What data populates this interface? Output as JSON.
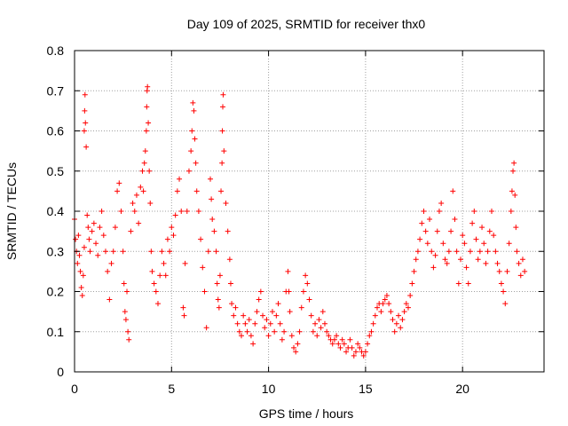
{
  "chart_data": {
    "type": "scatter",
    "title": "Day 109 of 2025, SRMTID for receiver thx0",
    "xlabel": "GPS time / hours",
    "ylabel": "SRMTID / TECUs",
    "xlim": [
      0,
      24.2
    ],
    "ylim": [
      0,
      0.8
    ],
    "x_ticks": [
      0,
      5,
      10,
      15,
      20
    ],
    "x_tick_labels": [
      "0",
      "5",
      "10",
      "15",
      "20"
    ],
    "y_ticks": [
      0,
      0.1,
      0.2,
      0.3,
      0.4,
      0.5,
      0.6,
      0.7,
      0.8
    ],
    "y_tick_labels": [
      "0",
      "0.1",
      "0.2",
      "0.3",
      "0.4",
      "0.5",
      "0.6",
      "0.7",
      "0.8"
    ],
    "grid": true,
    "marker": "+",
    "point_color": "#ff0000",
    "series": [
      {
        "name": "thx0",
        "points": [
          [
            0.0,
            0.38
          ],
          [
            0.05,
            0.33
          ],
          [
            0.1,
            0.3
          ],
          [
            0.15,
            0.27
          ],
          [
            0.2,
            0.34
          ],
          [
            0.25,
            0.29
          ],
          [
            0.3,
            0.25
          ],
          [
            0.35,
            0.21
          ],
          [
            0.4,
            0.19
          ],
          [
            0.45,
            0.24
          ],
          [
            0.5,
            0.31
          ],
          [
            0.5,
            0.6
          ],
          [
            0.52,
            0.65
          ],
          [
            0.54,
            0.69
          ],
          [
            0.56,
            0.62
          ],
          [
            0.6,
            0.56
          ],
          [
            0.65,
            0.39
          ],
          [
            0.7,
            0.36
          ],
          [
            0.75,
            0.33
          ],
          [
            0.8,
            0.3
          ],
          [
            0.9,
            0.35
          ],
          [
            1.0,
            0.37
          ],
          [
            1.1,
            0.32
          ],
          [
            1.2,
            0.29
          ],
          [
            1.3,
            0.36
          ],
          [
            1.4,
            0.4
          ],
          [
            1.5,
            0.34
          ],
          [
            1.6,
            0.3
          ],
          [
            1.7,
            0.25
          ],
          [
            1.8,
            0.18
          ],
          [
            1.9,
            0.27
          ],
          [
            2.0,
            0.3
          ],
          [
            2.1,
            0.36
          ],
          [
            2.2,
            0.45
          ],
          [
            2.3,
            0.47
          ],
          [
            2.4,
            0.4
          ],
          [
            2.5,
            0.3
          ],
          [
            2.55,
            0.22
          ],
          [
            2.6,
            0.15
          ],
          [
            2.65,
            0.13
          ],
          [
            2.7,
            0.2
          ],
          [
            2.75,
            0.1
          ],
          [
            2.8,
            0.08
          ],
          [
            2.9,
            0.35
          ],
          [
            3.0,
            0.42
          ],
          [
            3.1,
            0.4
          ],
          [
            3.2,
            0.44
          ],
          [
            3.3,
            0.37
          ],
          [
            3.4,
            0.46
          ],
          [
            3.5,
            0.5
          ],
          [
            3.55,
            0.45
          ],
          [
            3.6,
            0.52
          ],
          [
            3.65,
            0.55
          ],
          [
            3.7,
            0.6
          ],
          [
            3.72,
            0.66
          ],
          [
            3.74,
            0.7
          ],
          [
            3.76,
            0.71
          ],
          [
            3.8,
            0.62
          ],
          [
            3.85,
            0.5
          ],
          [
            3.9,
            0.42
          ],
          [
            3.95,
            0.3
          ],
          [
            4.0,
            0.25
          ],
          [
            4.1,
            0.22
          ],
          [
            4.2,
            0.2
          ],
          [
            4.3,
            0.17
          ],
          [
            4.4,
            0.24
          ],
          [
            4.5,
            0.3
          ],
          [
            4.6,
            0.27
          ],
          [
            4.7,
            0.24
          ],
          [
            4.8,
            0.33
          ],
          [
            4.9,
            0.3
          ],
          [
            5.0,
            0.36
          ],
          [
            5.1,
            0.34
          ],
          [
            5.2,
            0.39
          ],
          [
            5.3,
            0.45
          ],
          [
            5.4,
            0.48
          ],
          [
            5.5,
            0.4
          ],
          [
            5.6,
            0.16
          ],
          [
            5.65,
            0.14
          ],
          [
            5.7,
            0.27
          ],
          [
            5.8,
            0.4
          ],
          [
            5.9,
            0.5
          ],
          [
            6.0,
            0.55
          ],
          [
            6.05,
            0.6
          ],
          [
            6.1,
            0.67
          ],
          [
            6.15,
            0.65
          ],
          [
            6.2,
            0.58
          ],
          [
            6.25,
            0.52
          ],
          [
            6.3,
            0.45
          ],
          [
            6.4,
            0.4
          ],
          [
            6.5,
            0.33
          ],
          [
            6.6,
            0.26
          ],
          [
            6.7,
            0.2
          ],
          [
            6.8,
            0.11
          ],
          [
            6.9,
            0.3
          ],
          [
            7.0,
            0.48
          ],
          [
            7.05,
            0.43
          ],
          [
            7.1,
            0.38
          ],
          [
            7.2,
            0.35
          ],
          [
            7.3,
            0.3
          ],
          [
            7.35,
            0.22
          ],
          [
            7.4,
            0.18
          ],
          [
            7.45,
            0.16
          ],
          [
            7.5,
            0.24
          ],
          [
            7.55,
            0.45
          ],
          [
            7.6,
            0.52
          ],
          [
            7.62,
            0.6
          ],
          [
            7.64,
            0.66
          ],
          [
            7.66,
            0.69
          ],
          [
            7.7,
            0.55
          ],
          [
            7.8,
            0.42
          ],
          [
            7.9,
            0.35
          ],
          [
            8.0,
            0.28
          ],
          [
            8.05,
            0.22
          ],
          [
            8.1,
            0.17
          ],
          [
            8.2,
            0.14
          ],
          [
            8.3,
            0.16
          ],
          [
            8.4,
            0.12
          ],
          [
            8.5,
            0.1
          ],
          [
            8.6,
            0.09
          ],
          [
            8.7,
            0.14
          ],
          [
            8.8,
            0.12
          ],
          [
            8.9,
            0.1
          ],
          [
            9.0,
            0.13
          ],
          [
            9.1,
            0.09
          ],
          [
            9.2,
            0.07
          ],
          [
            9.3,
            0.12
          ],
          [
            9.4,
            0.15
          ],
          [
            9.5,
            0.18
          ],
          [
            9.6,
            0.2
          ],
          [
            9.7,
            0.14
          ],
          [
            9.8,
            0.11
          ],
          [
            9.9,
            0.13
          ],
          [
            10.0,
            0.09
          ],
          [
            10.1,
            0.12
          ],
          [
            10.2,
            0.15
          ],
          [
            10.3,
            0.1
          ],
          [
            10.4,
            0.14
          ],
          [
            10.5,
            0.17
          ],
          [
            10.6,
            0.12
          ],
          [
            10.7,
            0.08
          ],
          [
            10.8,
            0.1
          ],
          [
            10.9,
            0.2
          ],
          [
            11.0,
            0.25
          ],
          [
            11.05,
            0.2
          ],
          [
            11.1,
            0.15
          ],
          [
            11.2,
            0.09
          ],
          [
            11.3,
            0.06
          ],
          [
            11.4,
            0.05
          ],
          [
            11.5,
            0.07
          ],
          [
            11.6,
            0.1
          ],
          [
            11.7,
            0.16
          ],
          [
            11.8,
            0.2
          ],
          [
            11.9,
            0.24
          ],
          [
            12.0,
            0.22
          ],
          [
            12.1,
            0.18
          ],
          [
            12.2,
            0.14
          ],
          [
            12.3,
            0.1
          ],
          [
            12.4,
            0.12
          ],
          [
            12.5,
            0.09
          ],
          [
            12.6,
            0.13
          ],
          [
            12.7,
            0.11
          ],
          [
            12.8,
            0.15
          ],
          [
            12.9,
            0.12
          ],
          [
            13.0,
            0.1
          ],
          [
            13.1,
            0.09
          ],
          [
            13.2,
            0.08
          ],
          [
            13.3,
            0.07
          ],
          [
            13.4,
            0.08
          ],
          [
            13.5,
            0.09
          ],
          [
            13.6,
            0.07
          ],
          [
            13.7,
            0.06
          ],
          [
            13.8,
            0.08
          ],
          [
            13.9,
            0.07
          ],
          [
            14.0,
            0.05
          ],
          [
            14.1,
            0.06
          ],
          [
            14.2,
            0.08
          ],
          [
            14.3,
            0.06
          ],
          [
            14.4,
            0.04
          ],
          [
            14.5,
            0.05
          ],
          [
            14.6,
            0.07
          ],
          [
            14.7,
            0.06
          ],
          [
            14.8,
            0.05
          ],
          [
            14.9,
            0.04
          ],
          [
            15.0,
            0.05
          ],
          [
            15.1,
            0.07
          ],
          [
            15.2,
            0.09
          ],
          [
            15.3,
            0.1
          ],
          [
            15.4,
            0.12
          ],
          [
            15.5,
            0.14
          ],
          [
            15.6,
            0.16
          ],
          [
            15.7,
            0.17
          ],
          [
            15.8,
            0.15
          ],
          [
            15.9,
            0.17
          ],
          [
            16.0,
            0.18
          ],
          [
            16.1,
            0.19
          ],
          [
            16.2,
            0.17
          ],
          [
            16.3,
            0.15
          ],
          [
            16.4,
            0.13
          ],
          [
            16.5,
            0.1
          ],
          [
            16.6,
            0.12
          ],
          [
            16.7,
            0.14
          ],
          [
            16.8,
            0.11
          ],
          [
            16.9,
            0.13
          ],
          [
            17.0,
            0.15
          ],
          [
            17.1,
            0.17
          ],
          [
            17.2,
            0.16
          ],
          [
            17.3,
            0.19
          ],
          [
            17.4,
            0.22
          ],
          [
            17.5,
            0.25
          ],
          [
            17.6,
            0.28
          ],
          [
            17.7,
            0.3
          ],
          [
            17.8,
            0.33
          ],
          [
            17.9,
            0.37
          ],
          [
            18.0,
            0.4
          ],
          [
            18.1,
            0.35
          ],
          [
            18.2,
            0.32
          ],
          [
            18.3,
            0.38
          ],
          [
            18.4,
            0.3
          ],
          [
            18.5,
            0.26
          ],
          [
            18.6,
            0.29
          ],
          [
            18.7,
            0.35
          ],
          [
            18.8,
            0.4
          ],
          [
            18.9,
            0.42
          ],
          [
            19.0,
            0.32
          ],
          [
            19.1,
            0.28
          ],
          [
            19.2,
            0.27
          ],
          [
            19.3,
            0.3
          ],
          [
            19.4,
            0.35
          ],
          [
            19.5,
            0.45
          ],
          [
            19.6,
            0.38
          ],
          [
            19.7,
            0.3
          ],
          [
            19.8,
            0.22
          ],
          [
            19.9,
            0.28
          ],
          [
            20.0,
            0.34
          ],
          [
            20.1,
            0.32
          ],
          [
            20.2,
            0.26
          ],
          [
            20.3,
            0.22
          ],
          [
            20.4,
            0.3
          ],
          [
            20.5,
            0.37
          ],
          [
            20.6,
            0.4
          ],
          [
            20.7,
            0.33
          ],
          [
            20.8,
            0.28
          ],
          [
            20.9,
            0.3
          ],
          [
            21.0,
            0.36
          ],
          [
            21.1,
            0.32
          ],
          [
            21.2,
            0.27
          ],
          [
            21.3,
            0.3
          ],
          [
            21.4,
            0.35
          ],
          [
            21.5,
            0.4
          ],
          [
            21.6,
            0.34
          ],
          [
            21.7,
            0.3
          ],
          [
            21.8,
            0.27
          ],
          [
            21.9,
            0.25
          ],
          [
            22.0,
            0.22
          ],
          [
            22.1,
            0.2
          ],
          [
            22.2,
            0.17
          ],
          [
            22.3,
            0.25
          ],
          [
            22.4,
            0.32
          ],
          [
            22.5,
            0.4
          ],
          [
            22.55,
            0.45
          ],
          [
            22.6,
            0.5
          ],
          [
            22.65,
            0.52
          ],
          [
            22.7,
            0.44
          ],
          [
            22.75,
            0.36
          ],
          [
            22.8,
            0.3
          ],
          [
            22.9,
            0.27
          ],
          [
            23.0,
            0.24
          ],
          [
            23.1,
            0.28
          ],
          [
            23.2,
            0.25
          ]
        ]
      }
    ]
  }
}
